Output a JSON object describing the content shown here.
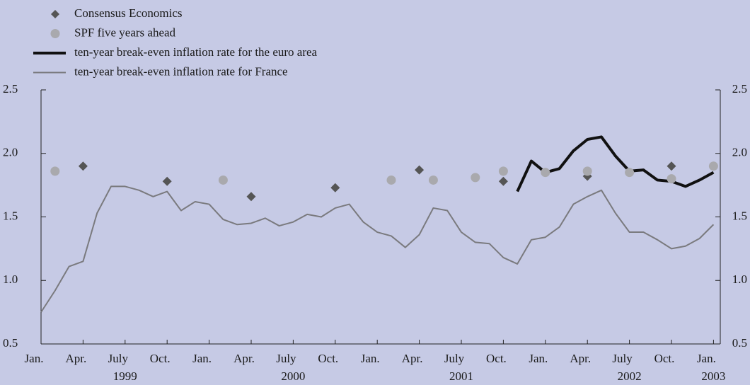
{
  "chart_data": {
    "type": "line",
    "x": [
      "1999-01",
      "1999-02",
      "1999-03",
      "1999-04",
      "1999-05",
      "1999-06",
      "1999-07",
      "1999-08",
      "1999-09",
      "1999-10",
      "1999-11",
      "1999-12",
      "2000-01",
      "2000-02",
      "2000-03",
      "2000-04",
      "2000-05",
      "2000-06",
      "2000-07",
      "2000-08",
      "2000-09",
      "2000-10",
      "2000-11",
      "2000-12",
      "2001-01",
      "2001-02",
      "2001-03",
      "2001-04",
      "2001-05",
      "2001-06",
      "2001-07",
      "2001-08",
      "2001-09",
      "2001-10",
      "2001-11",
      "2001-12",
      "2002-01",
      "2002-02",
      "2002-03",
      "2002-04",
      "2002-05",
      "2002-06",
      "2002-07",
      "2002-08",
      "2002-09",
      "2002-10",
      "2002-11",
      "2002-12",
      "2003-01"
    ],
    "series": [
      {
        "name": "Consensus Economics",
        "marker": "diamond",
        "color": "#555555",
        "values": [
          null,
          null,
          null,
          1.9,
          null,
          null,
          null,
          null,
          null,
          1.78,
          null,
          null,
          null,
          null,
          null,
          1.66,
          null,
          null,
          null,
          null,
          null,
          1.73,
          null,
          null,
          null,
          null,
          null,
          1.87,
          null,
          null,
          null,
          null,
          null,
          1.78,
          null,
          null,
          null,
          null,
          null,
          1.82,
          null,
          null,
          null,
          null,
          null,
          1.9,
          null,
          null,
          null
        ]
      },
      {
        "name": "SPF five years ahead",
        "marker": "circle",
        "color": "#a9a9ad",
        "values": [
          null,
          1.86,
          null,
          null,
          null,
          null,
          null,
          null,
          null,
          null,
          null,
          null,
          null,
          1.79,
          null,
          null,
          null,
          null,
          null,
          null,
          null,
          null,
          null,
          null,
          null,
          1.79,
          null,
          null,
          1.79,
          null,
          null,
          1.81,
          null,
          1.86,
          null,
          null,
          1.85,
          null,
          null,
          1.86,
          null,
          null,
          1.85,
          null,
          null,
          1.8,
          null,
          null,
          1.9
        ]
      },
      {
        "name": "ten-year break-even inflation rate for the euro area",
        "marker": "line",
        "color": "#111111",
        "width": 4,
        "values": [
          null,
          null,
          null,
          null,
          null,
          null,
          null,
          null,
          null,
          null,
          null,
          null,
          null,
          null,
          null,
          null,
          null,
          null,
          null,
          null,
          null,
          null,
          null,
          null,
          null,
          null,
          null,
          null,
          null,
          null,
          null,
          null,
          null,
          null,
          1.7,
          1.94,
          1.85,
          1.88,
          2.02,
          2.11,
          2.13,
          1.98,
          1.86,
          1.87,
          1.79,
          1.78,
          1.74,
          1.79,
          1.85
        ]
      },
      {
        "name": "ten-year break-even inflation rate for France",
        "marker": "line",
        "color": "#7a7a7e",
        "width": 2,
        "values": [
          0.75,
          0.92,
          1.11,
          1.15,
          1.53,
          1.74,
          1.74,
          1.71,
          1.66,
          1.7,
          1.55,
          1.62,
          1.6,
          1.48,
          1.44,
          1.45,
          1.49,
          1.43,
          1.46,
          1.52,
          1.5,
          1.57,
          1.6,
          1.46,
          1.38,
          1.35,
          1.26,
          1.36,
          1.57,
          1.55,
          1.38,
          1.3,
          1.29,
          1.18,
          1.13,
          1.32,
          1.34,
          1.42,
          1.6,
          1.66,
          1.71,
          1.53,
          1.38,
          1.38,
          1.32,
          1.25,
          1.27,
          1.33,
          1.44
        ]
      }
    ],
    "ylim": [
      0.5,
      2.5
    ],
    "yticks": [
      0.5,
      {
        "value": 1,
        "label": "1.0"
      },
      1.5,
      {
        "value": 2,
        "label": "2.0"
      },
      2.5
    ],
    "y2lim": [
      0.5,
      2.5
    ],
    "y2ticks": [
      0.5,
      {
        "value": 1,
        "label": "1.0"
      },
      1.5,
      {
        "value": 2,
        "label": "2.0"
      },
      2.5
    ],
    "xticks": [
      {
        "value": "1999-01",
        "label": "Jan."
      },
      {
        "value": "1999-04",
        "label": "Apr."
      },
      {
        "value": "1999-07",
        "label": "July"
      },
      {
        "value": "1999-10",
        "label": "Oct."
      },
      {
        "value": "2000-01",
        "label": "Jan."
      },
      {
        "value": "2000-04",
        "label": "Apr."
      },
      {
        "value": "2000-07",
        "label": "July"
      },
      {
        "value": "2000-10",
        "label": "Oct."
      },
      {
        "value": "2001-01",
        "label": "Jan."
      },
      {
        "value": "2001-04",
        "label": "Apr."
      },
      {
        "value": "2001-07",
        "label": "July"
      },
      {
        "value": "2001-10",
        "label": "Oct."
      },
      {
        "value": "2002-01",
        "label": "Jan."
      },
      {
        "value": "2002-04",
        "label": "Apr."
      },
      {
        "value": "2002-07",
        "label": "July"
      },
      {
        "value": "2002-10",
        "label": "Oct."
      },
      {
        "value": "2003-01",
        "label": "Jan."
      }
    ],
    "year_labels": [
      {
        "value": "1999-07",
        "label": "1999"
      },
      {
        "value": "2000-07",
        "label": "2000"
      },
      {
        "value": "2001-07",
        "label": "2001"
      },
      {
        "value": "2002-07",
        "label": "2002"
      },
      {
        "value": "2003-01",
        "label": "2003"
      }
    ],
    "legend": "upper left"
  }
}
